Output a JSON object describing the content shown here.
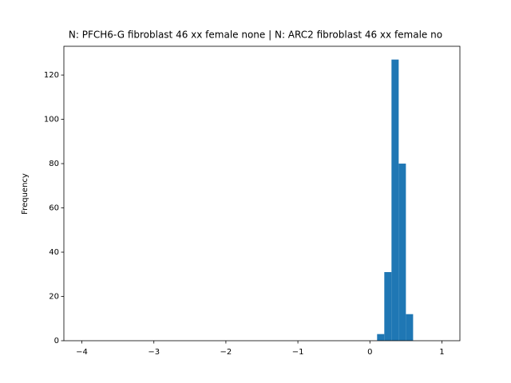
{
  "chart_data": {
    "type": "histogram",
    "title": "N: PFCH6-G fibroblast 46 xx female none | N: ARC2 fibroblast 46 xx female no",
    "ylabel": "Frequency",
    "color": "#1f77b4",
    "bins": [
      -4.0,
      -3.9,
      -3.8,
      -3.7,
      -3.6,
      -3.5,
      -3.4,
      -3.3,
      -3.2,
      -3.1,
      -3.0,
      -2.9,
      -2.8,
      -2.7,
      -2.6,
      -2.5,
      -2.4,
      -2.3,
      -2.2,
      -2.1,
      -2.0,
      -1.9,
      -1.8,
      -1.7,
      -1.6,
      -1.5,
      -1.4,
      -1.3,
      -1.2,
      -1.1,
      -1.0,
      -0.9,
      -0.8,
      -0.7,
      -0.6,
      -0.5,
      -0.4,
      -0.3,
      -0.2,
      -0.1,
      0.0,
      0.1,
      0.2,
      0.3,
      0.4,
      0.5,
      0.6,
      0.7,
      0.8,
      0.9,
      1.0
    ],
    "values": [
      0,
      0,
      0,
      0,
      0,
      0,
      0,
      0,
      0,
      0,
      0,
      0,
      0,
      0,
      0,
      0,
      0,
      0,
      0,
      0,
      0,
      0,
      0,
      0,
      0,
      0,
      0,
      0,
      0,
      0,
      0,
      0,
      0,
      0,
      0,
      0,
      0,
      0,
      0,
      0,
      0,
      3,
      31,
      127,
      80,
      12,
      0,
      0,
      0,
      0
    ],
    "xlim": [
      -4.25,
      1.25
    ],
    "ylim": [
      0,
      133
    ],
    "xticks": [
      {
        "value": -4,
        "label": "−4"
      },
      {
        "value": -3,
        "label": "−3"
      },
      {
        "value": -2,
        "label": "−2"
      },
      {
        "value": -1,
        "label": "−1"
      },
      0,
      1
    ],
    "yticks": [
      0,
      20,
      40,
      60,
      80,
      100,
      120
    ]
  }
}
